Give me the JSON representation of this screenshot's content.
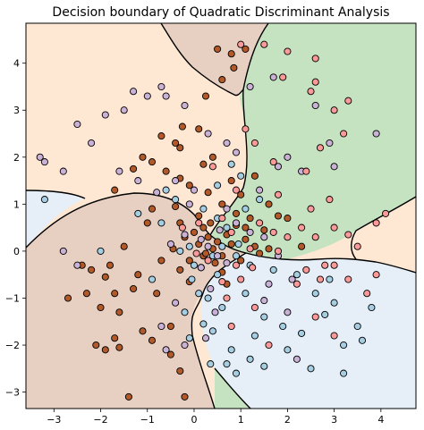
{
  "chart_data": {
    "type": "scatter",
    "title": "Decision boundary of Quadratic Discriminant Analysis",
    "xlabel": "",
    "ylabel": "",
    "xlim": [
      -3.6,
      4.75
    ],
    "ylim": [
      -3.35,
      4.85
    ],
    "x_ticks": [
      -3,
      -2,
      -1,
      0,
      1,
      2,
      3,
      4
    ],
    "y_ticks": [
      -3,
      -2,
      -1,
      0,
      1,
      2,
      3,
      4
    ],
    "x_tick_labels": [
      "−3",
      "−2",
      "−1",
      "0",
      "1",
      "2",
      "3",
      "4"
    ],
    "y_tick_labels": [
      "−3",
      "−2",
      "−1",
      "0",
      "1",
      "2",
      "3",
      "4"
    ],
    "grid": false,
    "legend": "none",
    "regions": [
      {
        "class": "orange",
        "color": "#fee8d4"
      },
      {
        "class": "brown",
        "color": "#e7d0c2"
      },
      {
        "class": "green",
        "color": "#c5e3c0"
      },
      {
        "class": "blue",
        "color": "#e6eff7"
      }
    ],
    "series": [
      {
        "class": "brown",
        "color": "#b15928",
        "points": [
          [
            -2.1,
            -2.0
          ],
          [
            -1.9,
            -2.1
          ],
          [
            -1.6,
            -2.05
          ],
          [
            -1.7,
            -1.85
          ],
          [
            -2.3,
            -0.9
          ],
          [
            -2.0,
            -1.2
          ],
          [
            -1.7,
            -0.9
          ],
          [
            -1.3,
            -0.8
          ],
          [
            -1.8,
            -0.3
          ],
          [
            -1.2,
            -0.5
          ],
          [
            -1.5,
            0.1
          ],
          [
            -0.7,
            -0.2
          ],
          [
            -2.4,
            -0.3
          ],
          [
            -2.2,
            -0.4
          ],
          [
            -1.1,
            -1.7
          ],
          [
            -0.9,
            -1.9
          ],
          [
            -0.5,
            -2.2
          ],
          [
            -1.4,
            -3.1
          ],
          [
            -0.2,
            -3.1
          ],
          [
            -0.3,
            -2.55
          ],
          [
            -1.6,
            -1.3
          ],
          [
            -0.5,
            -1.6
          ],
          [
            -2.7,
            -1.0
          ],
          [
            -1.9,
            -0.55
          ],
          [
            -0.8,
            -0.9
          ],
          [
            -0.3,
            -0.4
          ],
          [
            -0.1,
            -0.2
          ],
          [
            0.2,
            -0.1
          ],
          [
            0.1,
            0.15
          ],
          [
            0.3,
            0.3
          ],
          [
            0.4,
            0.05
          ],
          [
            0.5,
            0.2
          ],
          [
            0.6,
            -0.1
          ],
          [
            0.2,
            0.5
          ],
          [
            0.0,
            0.4
          ],
          [
            -0.2,
            0.3
          ],
          [
            0.35,
            0.6
          ],
          [
            0.7,
            0.35
          ],
          [
            0.8,
            0.15
          ],
          [
            0.45,
            -0.25
          ],
          [
            0.6,
            -0.45
          ],
          [
            0.9,
            0.55
          ],
          [
            1.1,
            0.25
          ],
          [
            1.3,
            0.1
          ],
          [
            1.5,
            0.45
          ],
          [
            1.2,
            0.7
          ],
          [
            1.8,
            0.75
          ],
          [
            0.6,
            1.0
          ],
          [
            0.3,
            1.25
          ],
          [
            -0.3,
            1.55
          ],
          [
            -0.6,
            1.7
          ],
          [
            -0.9,
            1.9
          ],
          [
            -1.1,
            2.0
          ],
          [
            0.2,
            1.85
          ],
          [
            0.4,
            2.0
          ],
          [
            -0.7,
            2.45
          ],
          [
            -0.3,
            2.2
          ],
          [
            0.1,
            2.6
          ],
          [
            -1.7,
            1.3
          ],
          [
            -1.3,
            1.75
          ],
          [
            -1.0,
            0.6
          ],
          [
            -0.9,
            0.9
          ],
          [
            -0.4,
            0.95
          ],
          [
            -0.3,
            0.6
          ],
          [
            0.1,
            0.75
          ],
          [
            0.9,
            0.8
          ],
          [
            1.0,
            1.2
          ],
          [
            1.3,
            1.6
          ],
          [
            1.6,
            1.0
          ],
          [
            2.0,
            0.7
          ],
          [
            2.3,
            0.1
          ],
          [
            1.4,
            -0.05
          ],
          [
            0.7,
            -0.7
          ],
          [
            1.0,
            -0.2
          ],
          [
            1.6,
            0.05
          ],
          [
            0.5,
            4.3
          ],
          [
            0.8,
            4.2
          ],
          [
            0.85,
            3.9
          ],
          [
            1.1,
            4.3
          ],
          [
            0.6,
            3.65
          ],
          [
            0.25,
            3.3
          ],
          [
            -0.25,
            2.65
          ],
          [
            -0.4,
            2.3
          ],
          [
            -0.1,
            1.4
          ],
          [
            0.8,
            1.5
          ],
          [
            1.1,
            0.5
          ],
          [
            0.25,
            -0.05
          ],
          [
            -0.45,
            0.05
          ],
          [
            -0.1,
            -0.65
          ]
        ]
      },
      {
        "class": "blue",
        "color": "#a6cee3",
        "points": [
          [
            -3.2,
            1.1
          ],
          [
            -2.0,
            0.0
          ],
          [
            -1.2,
            0.8
          ],
          [
            -0.6,
            1.3
          ],
          [
            -0.7,
            0.6
          ],
          [
            -0.3,
            0.0
          ],
          [
            0.0,
            -0.3
          ],
          [
            -0.05,
            -0.6
          ],
          [
            0.1,
            -0.9
          ],
          [
            -0.2,
            -1.3
          ],
          [
            0.3,
            -1.0
          ],
          [
            0.6,
            -1.2
          ],
          [
            0.4,
            -1.7
          ],
          [
            0.8,
            -2.1
          ],
          [
            0.7,
            -2.4
          ],
          [
            1.2,
            -2.3
          ],
          [
            1.3,
            -1.8
          ],
          [
            1.5,
            -1.4
          ],
          [
            1.9,
            -1.6
          ],
          [
            2.0,
            -2.1
          ],
          [
            2.5,
            -2.5
          ],
          [
            3.2,
            -2.6
          ],
          [
            3.5,
            -1.6
          ],
          [
            3.0,
            -1.1
          ],
          [
            2.6,
            -0.9
          ],
          [
            2.9,
            -0.6
          ],
          [
            2.2,
            -0.5
          ],
          [
            1.7,
            -0.4
          ],
          [
            1.2,
            -0.3
          ],
          [
            0.9,
            -0.1
          ],
          [
            0.5,
            -0.5
          ],
          [
            0.2,
            -1.55
          ],
          [
            -0.1,
            -1.85
          ],
          [
            0.35,
            -2.4
          ],
          [
            0.9,
            -2.6
          ],
          [
            1.5,
            -2.45
          ],
          [
            2.3,
            -1.75
          ],
          [
            3.2,
            -2.0
          ],
          [
            3.6,
            -1.9
          ],
          [
            3.8,
            -1.2
          ],
          [
            2.8,
            -1.35
          ],
          [
            1.1,
            0.9
          ],
          [
            1.4,
            1.1
          ],
          [
            1.0,
            1.6
          ],
          [
            0.8,
            1.85
          ],
          [
            0.5,
            1.4
          ],
          [
            -0.4,
            1.1
          ],
          [
            0.2,
            0.9
          ],
          [
            0.5,
            0.7
          ],
          [
            0.7,
            0.5
          ],
          [
            0.95,
            0.15
          ],
          [
            0.4,
            -0.1
          ],
          [
            -0.1,
            0.1
          ],
          [
            0.15,
            -0.35
          ],
          [
            0.6,
            0.1
          ],
          [
            1.1,
            -0.9
          ],
          [
            -0.9,
            -0.6
          ]
        ]
      },
      {
        "class": "purple",
        "color": "#cab2d6",
        "points": [
          [
            -3.3,
            2.0
          ],
          [
            -3.2,
            1.9
          ],
          [
            -2.8,
            1.7
          ],
          [
            -2.5,
            2.7
          ],
          [
            -2.2,
            2.3
          ],
          [
            -1.9,
            2.9
          ],
          [
            -1.5,
            3.0
          ],
          [
            -1.3,
            3.4
          ],
          [
            -1.0,
            3.3
          ],
          [
            -0.7,
            3.5
          ],
          [
            -0.6,
            3.3
          ],
          [
            -0.2,
            3.1
          ],
          [
            0.3,
            2.5
          ],
          [
            0.7,
            2.3
          ],
          [
            0.9,
            2.1
          ],
          [
            -1.6,
            1.7
          ],
          [
            -1.2,
            1.5
          ],
          [
            -0.8,
            1.25
          ],
          [
            -0.4,
            1.5
          ],
          [
            0.0,
            1.3
          ],
          [
            -2.8,
            0.0
          ],
          [
            -2.5,
            -0.3
          ],
          [
            -0.5,
            0.15
          ],
          [
            -0.4,
            -1.1
          ],
          [
            -0.7,
            -1.6
          ],
          [
            -0.6,
            -2.1
          ],
          [
            -0.2,
            -2.0
          ],
          [
            0.25,
            -1.85
          ],
          [
            0.45,
            -1.3
          ],
          [
            1.6,
            -0.7
          ],
          [
            1.5,
            -1.05
          ],
          [
            2.1,
            -0.6
          ],
          [
            2.0,
            -1.3
          ],
          [
            2.2,
            -2.3
          ],
          [
            0.35,
            -0.8
          ],
          [
            0.15,
            -0.35
          ],
          [
            0.5,
            -0.1
          ],
          [
            0.3,
            0.1
          ],
          [
            0.15,
            0.25
          ],
          [
            -0.2,
            0.35
          ],
          [
            0.7,
            0.9
          ],
          [
            0.9,
            0.6
          ],
          [
            1.2,
            0.4
          ],
          [
            1.5,
            0.3
          ],
          [
            1.8,
            -0.1
          ],
          [
            1.8,
            1.8
          ],
          [
            2.0,
            2.0
          ],
          [
            2.3,
            1.7
          ],
          [
            2.9,
            2.3
          ],
          [
            2.6,
            3.1
          ],
          [
            3.0,
            1.8
          ],
          [
            3.9,
            2.5
          ],
          [
            1.2,
            3.5
          ],
          [
            1.7,
            3.7
          ],
          [
            1.4,
            1.3
          ],
          [
            0.55,
            0.45
          ],
          [
            -0.1,
            1.0
          ],
          [
            0.7,
            -0.25
          ]
        ]
      },
      {
        "class": "red",
        "color": "#fb9a99",
        "points": [
          [
            1.0,
            4.4
          ],
          [
            1.5,
            4.4
          ],
          [
            2.0,
            4.25
          ],
          [
            2.6,
            4.1
          ],
          [
            1.9,
            3.7
          ],
          [
            2.5,
            3.4
          ],
          [
            2.6,
            3.6
          ],
          [
            3.0,
            3.0
          ],
          [
            3.3,
            3.2
          ],
          [
            3.2,
            2.5
          ],
          [
            2.7,
            2.2
          ],
          [
            2.4,
            1.7
          ],
          [
            1.7,
            1.9
          ],
          [
            1.3,
            2.3
          ],
          [
            1.1,
            2.6
          ],
          [
            0.9,
            1.3
          ],
          [
            1.8,
            1.2
          ],
          [
            2.3,
            0.5
          ],
          [
            2.5,
            0.9
          ],
          [
            2.6,
            0.3
          ],
          [
            3.0,
            0.5
          ],
          [
            3.0,
            -0.3
          ],
          [
            3.3,
            -0.6
          ],
          [
            3.5,
            0.1
          ],
          [
            3.9,
            0.6
          ],
          [
            4.1,
            0.8
          ],
          [
            3.9,
            -0.5
          ],
          [
            3.7,
            -0.9
          ],
          [
            2.7,
            -0.6
          ],
          [
            2.2,
            -0.7
          ],
          [
            2.4,
            -0.4
          ],
          [
            2.8,
            -0.3
          ],
          [
            2.0,
            0.3
          ],
          [
            1.8,
            0.0
          ],
          [
            1.7,
            0.4
          ],
          [
            1.4,
            0.6
          ],
          [
            1.2,
            0.05
          ],
          [
            0.8,
            0.4
          ],
          [
            0.9,
            -0.3
          ],
          [
            0.6,
            0.7
          ],
          [
            0.3,
            -0.2
          ],
          [
            0.1,
            0.6
          ],
          [
            0.05,
            -0.05
          ],
          [
            -0.25,
            0.5
          ],
          [
            0.4,
            1.8
          ],
          [
            0.6,
            -0.65
          ],
          [
            1.0,
            -0.6
          ],
          [
            1.25,
            -0.35
          ],
          [
            0.7,
            -1.0
          ],
          [
            1.3,
            -1.2
          ],
          [
            1.6,
            -2.0
          ],
          [
            2.6,
            -1.4
          ],
          [
            3.0,
            -1.8
          ],
          [
            0.8,
            -1.6
          ],
          [
            2.9,
            1.1
          ],
          [
            3.3,
            0.35
          ]
        ]
      }
    ]
  }
}
